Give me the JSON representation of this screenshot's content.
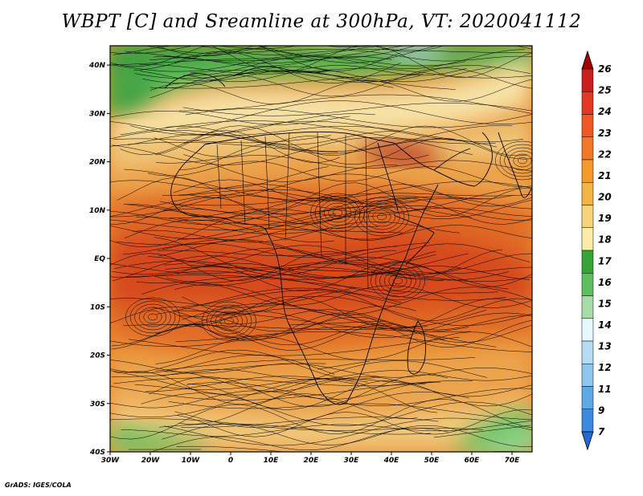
{
  "title": "WBPT [C] and Sreamline at 300hPa, VT: 2020041112",
  "credit": "GrADS: IGES/COLA",
  "map": {
    "lat_labels": [
      "40N",
      "30N",
      "20N",
      "10N",
      "EQ",
      "10S",
      "20S",
      "30S",
      "40S"
    ],
    "lon_labels": [
      "30W",
      "20W",
      "10W",
      "0",
      "10E",
      "20E",
      "30E",
      "40E",
      "50E",
      "60E",
      "70E"
    ],
    "lat_range": [
      -40,
      44
    ],
    "lon_range": [
      -30,
      75
    ],
    "field": "wet-bulb potential temperature shaded with streamlines",
    "palette": {
      "green_dark": "#3a9a3a",
      "green": "#5cbf5c",
      "green_light": "#9ad89a",
      "pale": "#dff3df",
      "blue_light": "#bcd8f0",
      "tan_light": "#f6e2a6",
      "tan": "#f0c77a",
      "orange_light": "#eca54e",
      "orange": "#e88a32",
      "orange_red": "#e06a25",
      "red": "#d5481a",
      "dark_red": "#b3301a"
    }
  },
  "colorbar": {
    "levels": [
      "26",
      "25",
      "24",
      "23",
      "22",
      "21",
      "20",
      "19",
      "18",
      "17",
      "16",
      "15",
      "14",
      "13",
      "12",
      "11",
      "9",
      "7"
    ],
    "colors": [
      "#a00000",
      "#c81e1e",
      "#e03b22",
      "#ee5a22",
      "#f27825",
      "#f39a28",
      "#f2b544",
      "#f6d47c",
      "#fbeca8",
      "#36a436",
      "#5dbf5d",
      "#a6dca6",
      "#e8f8ff",
      "#b6dcf5",
      "#8ec6ef",
      "#5fa9e6",
      "#3c8ade",
      "#1f6ad3"
    ]
  }
}
